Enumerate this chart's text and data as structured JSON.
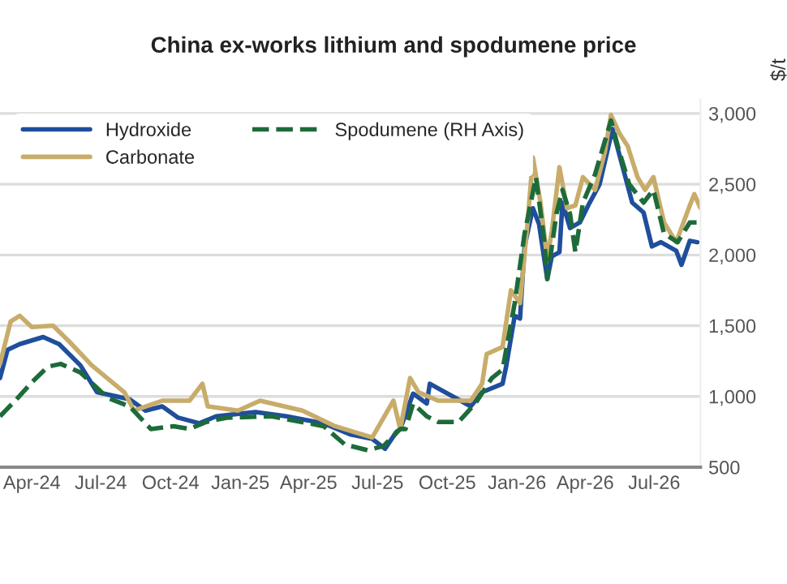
{
  "chart_data": {
    "type": "line",
    "title": "China ex-works lithium and spodumene price",
    "ylabel": "$/t",
    "xlim": [
      "2024-02-19",
      "2026-08-31"
    ],
    "xticks": [
      {
        "value": "2024-04-01",
        "label": "Apr-24"
      },
      {
        "value": "2024-07-01",
        "label": "Jul-24"
      },
      {
        "value": "2024-10-01",
        "label": "Oct-24"
      },
      {
        "value": "2025-01-01",
        "label": "Jan-25"
      },
      {
        "value": "2025-04-01",
        "label": "Apr-25"
      },
      {
        "value": "2025-07-01",
        "label": "Jul-25"
      },
      {
        "value": "2025-10-01",
        "label": "Oct-25"
      },
      {
        "value": "2026-01-01",
        "label": "Jan-26"
      },
      {
        "value": "2026-04-01",
        "label": "Apr-26"
      },
      {
        "value": "2026-07-01",
        "label": "Jul-26"
      }
    ],
    "ylim": [
      500,
      3100
    ],
    "yticks": [
      {
        "value": 500,
        "label": "500"
      },
      {
        "value": 1000,
        "label": "1,000"
      },
      {
        "value": 1500,
        "label": "1,500"
      },
      {
        "value": 2000,
        "label": "2,000"
      },
      {
        "value": 2500,
        "label": "2,500"
      },
      {
        "value": 3000,
        "label": "3,000"
      }
    ],
    "grid": "y",
    "legend": "top left",
    "series": [
      {
        "name": "Hydroxide",
        "color": "#1f4e9c",
        "line_style": "solid",
        "x": [
          "2024-02-19",
          "2024-02-29",
          "2024-03-16",
          "2024-04-16",
          "2024-05-07",
          "2024-06-04",
          "2024-06-26",
          "2024-08-08",
          "2024-08-29",
          "2024-09-20",
          "2024-10-11",
          "2024-11-08",
          "2024-11-30",
          "2025-01-21",
          "2025-03-03",
          "2025-04-21",
          "2025-05-27",
          "2025-06-24",
          "2025-07-11",
          "2025-07-26",
          "2025-07-31",
          "2025-08-17",
          "2025-09-04",
          "2025-09-08",
          "2025-11-01",
          "2025-11-16",
          "2025-12-13",
          "2025-12-18",
          "2025-12-29",
          "2026-01-05",
          "2026-01-11",
          "2026-01-22",
          "2026-01-30",
          "2026-02-10",
          "2026-02-16",
          "2026-02-26",
          "2026-03-02",
          "2026-03-12",
          "2026-03-25",
          "2026-04-05",
          "2026-04-20",
          "2026-05-07",
          "2026-05-22",
          "2026-06-02",
          "2026-06-17",
          "2026-06-28",
          "2026-07-10",
          "2026-07-30",
          "2026-08-06",
          "2026-08-17",
          "2026-08-27"
        ],
        "values": [
          1130,
          1330,
          1370,
          1420,
          1370,
          1220,
          1030,
          980,
          900,
          930,
          850,
          810,
          860,
          890,
          860,
          810,
          730,
          700,
          630,
          750,
          770,
          1020,
          950,
          1090,
          930,
          1030,
          1090,
          1220,
          1570,
          1550,
          2060,
          2330,
          2220,
          1830,
          1990,
          2020,
          2370,
          2190,
          2230,
          2350,
          2500,
          2890,
          2590,
          2370,
          2300,
          2060,
          2090,
          2030,
          1930,
          2100,
          2090
        ]
      },
      {
        "name": "Carbonate",
        "color": "#c8ac6a",
        "line_style": "solid",
        "x": [
          "2024-02-19",
          "2024-03-04",
          "2024-03-16",
          "2024-04-01",
          "2024-04-29",
          "2024-05-20",
          "2024-06-19",
          "2024-08-01",
          "2024-08-14",
          "2024-09-20",
          "2024-10-26",
          "2024-11-12",
          "2024-11-19",
          "2024-12-29",
          "2025-01-27",
          "2025-03-24",
          "2025-05-06",
          "2025-06-24",
          "2025-07-22",
          "2025-07-31",
          "2025-08-13",
          "2025-08-24",
          "2025-09-19",
          "2025-11-01",
          "2025-11-16",
          "2025-11-22",
          "2025-12-13",
          "2025-12-24",
          "2026-01-05",
          "2026-01-15",
          "2026-01-22",
          "2026-02-01",
          "2026-02-10",
          "2026-02-16",
          "2026-02-26",
          "2026-03-08",
          "2026-03-19",
          "2026-03-29",
          "2026-04-14",
          "2026-04-27",
          "2026-05-05",
          "2026-05-16",
          "2026-05-27",
          "2026-06-09",
          "2026-06-19",
          "2026-06-30",
          "2026-07-14",
          "2026-07-30",
          "2026-08-17",
          "2026-08-23",
          "2026-08-31"
        ],
        "values": [
          1230,
          1530,
          1570,
          1490,
          1500,
          1390,
          1220,
          1030,
          900,
          970,
          970,
          1090,
          930,
          900,
          970,
          900,
          790,
          710,
          970,
          770,
          1130,
          1030,
          970,
          970,
          1090,
          1300,
          1350,
          1750,
          1660,
          2230,
          2690,
          2370,
          1970,
          2170,
          2620,
          2330,
          2350,
          2550,
          2460,
          2730,
          2990,
          2860,
          2770,
          2550,
          2460,
          2550,
          2230,
          2090,
          2350,
          2430,
          2330
        ]
      },
      {
        "name": "Spodumene (RH Axis)",
        "color": "#1d6b3a",
        "line_style": "dashed",
        "x": [
          "2024-02-19",
          "2024-03-10",
          "2024-04-01",
          "2024-04-22",
          "2024-05-09",
          "2024-06-04",
          "2024-07-10",
          "2024-08-08",
          "2024-09-05",
          "2024-10-05",
          "2024-10-26",
          "2024-11-17",
          "2024-12-14",
          "2025-02-11",
          "2025-04-21",
          "2025-05-19",
          "2025-06-18",
          "2025-07-09",
          "2025-07-31",
          "2025-08-07",
          "2025-08-17",
          "2025-09-04",
          "2025-09-19",
          "2025-10-16",
          "2025-11-07",
          "2025-11-29",
          "2025-12-13",
          "2025-12-29",
          "2026-01-11",
          "2026-01-26",
          "2026-02-06",
          "2026-02-10",
          "2026-02-22",
          "2026-03-02",
          "2026-03-12",
          "2026-03-19",
          "2026-03-29",
          "2026-04-14",
          "2026-05-05",
          "2026-05-16",
          "2026-05-29",
          "2026-06-17",
          "2026-06-30",
          "2026-07-14",
          "2026-08-01",
          "2026-08-17",
          "2026-08-27"
        ],
        "values": [
          860,
          970,
          1100,
          1210,
          1230,
          1170,
          990,
          930,
          770,
          790,
          770,
          820,
          850,
          860,
          790,
          660,
          620,
          650,
          770,
          770,
          950,
          860,
          820,
          820,
          950,
          1130,
          1190,
          1660,
          2150,
          2550,
          2100,
          1830,
          2290,
          2460,
          2290,
          2020,
          2370,
          2570,
          2950,
          2730,
          2500,
          2370,
          2460,
          2150,
          2090,
          2230,
          2230
        ]
      }
    ]
  }
}
